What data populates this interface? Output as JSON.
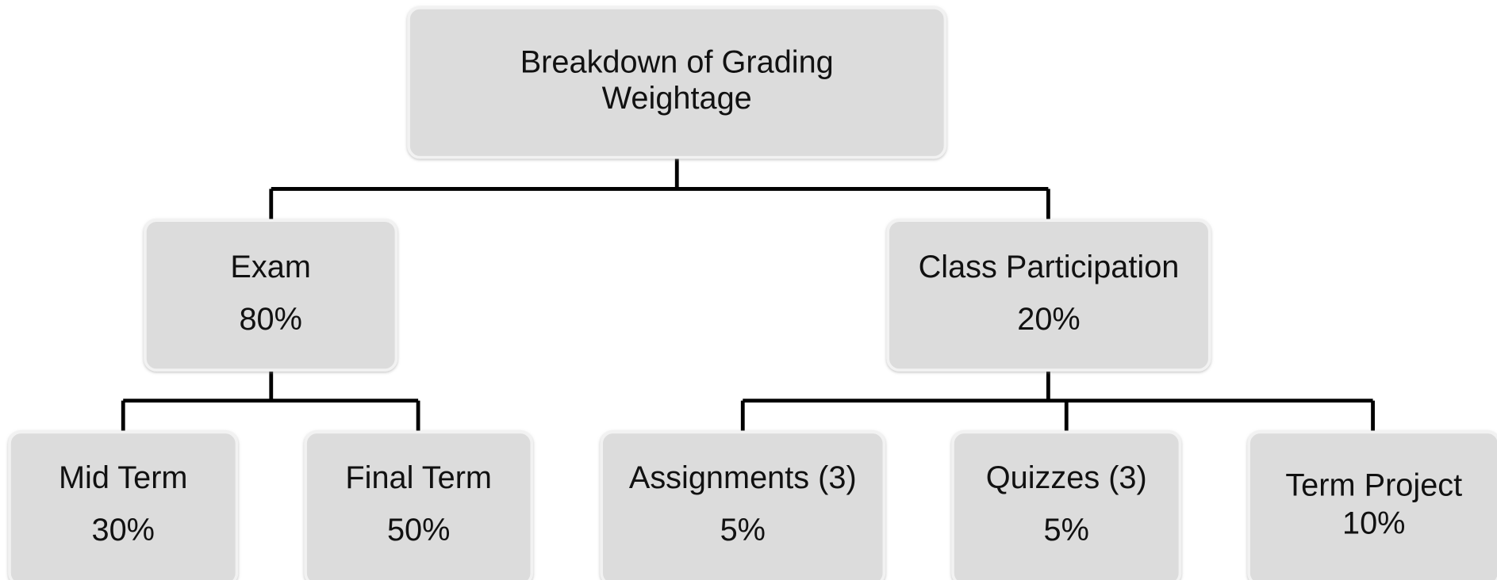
{
  "title": {
    "lines": [
      "Breakdown of Grading",
      "Weightage"
    ]
  },
  "nodes": [
    {
      "label": "Exam",
      "value": "80%"
    },
    {
      "label": "Class Participation",
      "value": "20%"
    },
    {
      "label": "Mid Term",
      "value": "30%"
    },
    {
      "label": "Final Term",
      "value": "50%"
    },
    {
      "label": "Assignments (3)",
      "value": "5%"
    },
    {
      "label": "Quizzes (3)",
      "value": "5%"
    },
    {
      "label": "Term Project",
      "value": "10%"
    }
  ]
}
